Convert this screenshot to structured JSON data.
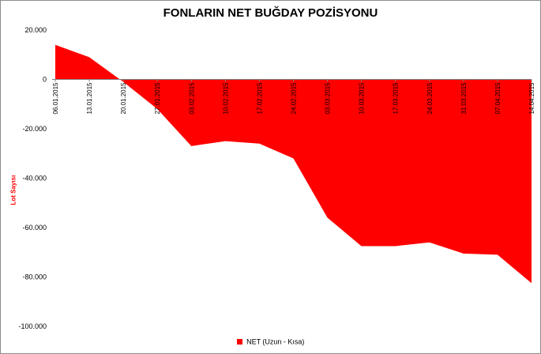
{
  "chart_data": {
    "type": "area",
    "title": "FONLARIN NET BUĞDAY POZİSYONU",
    "ylabel": "Lot Sayısı",
    "xlabel": "",
    "ylim": [
      -100000,
      20000
    ],
    "yticks": [
      20000,
      0,
      -20000,
      -40000,
      -60000,
      -80000,
      -100000
    ],
    "ytick_labels": [
      "20.000",
      "0",
      "-20.000",
      "-40.000",
      "-60.000",
      "-80.000",
      "-100.000"
    ],
    "categories": [
      "06.01.2015",
      "13.01.2015",
      "20.01.2015",
      "27.01.2015",
      "03.02.2015",
      "10.02.2015",
      "17.02.2015",
      "24.02.2015",
      "03.03.2015",
      "10.03.2015",
      "17.03.2015",
      "24.03.2015",
      "31.03.2015",
      "07.04.2015",
      "14.04.2015"
    ],
    "series": [
      {
        "name": "NET (Uzun - Kısa)",
        "color": "#ff0000",
        "values": [
          14000,
          9000,
          -1000,
          -12000,
          -27000,
          -25000,
          -26000,
          -32000,
          -56000,
          -67500,
          -67500,
          -66000,
          -70500,
          -71000,
          -82500
        ]
      }
    ],
    "grid": false,
    "legend_position": "bottom"
  }
}
